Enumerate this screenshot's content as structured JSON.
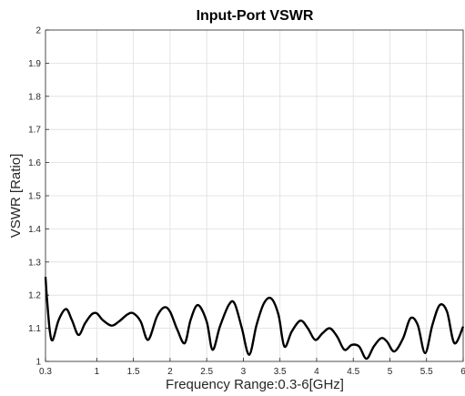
{
  "chart_data": {
    "type": "line",
    "title": "Input-Port VSWR",
    "xlabel": "Frequency Range:0.3-6[GHz]",
    "ylabel": "VSWR [Ratio]",
    "xlim": [
      0.3,
      6
    ],
    "ylim": [
      1,
      2
    ],
    "grid": true,
    "line_color": "#000000",
    "x_ticks": [
      {
        "value": 0.3,
        "label": "0.3"
      },
      {
        "value": 1,
        "label": "1"
      },
      {
        "value": 1.5,
        "label": "1.5"
      },
      {
        "value": 2,
        "label": "2"
      },
      {
        "value": 2.5,
        "label": "2.5"
      },
      {
        "value": 3,
        "label": "3"
      },
      {
        "value": 3.5,
        "label": "3.5"
      },
      {
        "value": 4,
        "label": "4"
      },
      {
        "value": 4.5,
        "label": "4.5"
      },
      {
        "value": 5,
        "label": "5"
      },
      {
        "value": 5.5,
        "label": "5.5"
      },
      {
        "value": 6,
        "label": "6"
      }
    ],
    "y_ticks": [
      {
        "value": 1,
        "label": "1"
      },
      {
        "value": 1.1,
        "label": "1.1"
      },
      {
        "value": 1.2,
        "label": "1.2"
      },
      {
        "value": 1.3,
        "label": "1.3"
      },
      {
        "value": 1.4,
        "label": "1.4"
      },
      {
        "value": 1.5,
        "label": "1.5"
      },
      {
        "value": 1.6,
        "label": "1.6"
      },
      {
        "value": 1.7,
        "label": "1.7"
      },
      {
        "value": 1.8,
        "label": "1.8"
      },
      {
        "value": 1.9,
        "label": "1.9"
      },
      {
        "value": 2,
        "label": "2"
      }
    ],
    "series": [
      {
        "x": [
          0.3,
          0.32,
          0.36,
          0.4,
          0.48,
          0.58,
          0.66,
          0.75,
          0.84,
          0.93,
          1.0,
          1.08,
          1.2,
          1.3,
          1.42,
          1.5,
          1.6,
          1.7,
          1.82,
          1.92,
          2.0,
          2.1,
          2.2,
          2.28,
          2.38,
          2.5,
          2.58,
          2.68,
          2.8,
          2.88,
          2.98,
          3.08,
          3.18,
          3.28,
          3.38,
          3.48,
          3.56,
          3.66,
          3.78,
          3.88,
          3.98,
          4.08,
          4.18,
          4.28,
          4.38,
          4.48,
          4.58,
          4.68,
          4.78,
          4.88,
          4.96,
          5.06,
          5.18,
          5.28,
          5.38,
          5.48,
          5.58,
          5.68,
          5.78,
          5.88,
          6.0
        ],
        "y": [
          1.255,
          1.19,
          1.09,
          1.065,
          1.125,
          1.158,
          1.125,
          1.08,
          1.115,
          1.142,
          1.145,
          1.125,
          1.108,
          1.12,
          1.142,
          1.145,
          1.12,
          1.065,
          1.135,
          1.163,
          1.15,
          1.095,
          1.055,
          1.125,
          1.17,
          1.12,
          1.035,
          1.105,
          1.17,
          1.175,
          1.1,
          1.02,
          1.11,
          1.175,
          1.19,
          1.14,
          1.045,
          1.09,
          1.123,
          1.1,
          1.065,
          1.085,
          1.1,
          1.075,
          1.035,
          1.05,
          1.045,
          1.008,
          1.045,
          1.07,
          1.06,
          1.03,
          1.07,
          1.13,
          1.11,
          1.025,
          1.11,
          1.17,
          1.15,
          1.055,
          1.105
        ]
      }
    ]
  }
}
